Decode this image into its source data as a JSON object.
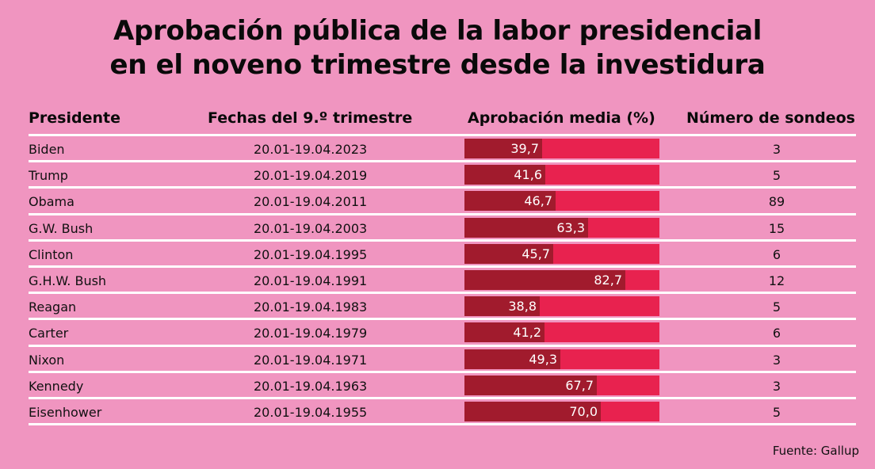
{
  "title_line1": "Aprobación pública de la labor presidencial",
  "title_line2": "en el noveno trimestre desde la investidura",
  "headers": {
    "president": "Presidente",
    "dates": "Fechas del 9.º trimestre",
    "approval": "Aprobación media (%)",
    "polls": "Número de sondeos"
  },
  "source": "Fuente: Gallup",
  "colors": {
    "background": "#f095c0",
    "bar_track": "#e8224f",
    "bar_fill": "#a11b2d",
    "rule": "#ffffff"
  },
  "chart_data": {
    "type": "table",
    "title": "Aprobación pública de la labor presidencial en el noveno trimestre desde la investidura",
    "columns": [
      "Presidente",
      "Fechas del 9.º trimestre",
      "Aprobación media (%)",
      "Número de sondeos"
    ],
    "bar_range": [
      0,
      100
    ],
    "rows": [
      {
        "president": "Biden",
        "dates": "20.01-19.04.2023",
        "approval": 39.7,
        "approval_label": "39,7",
        "polls": "3"
      },
      {
        "president": "Trump",
        "dates": "20.01-19.04.2019",
        "approval": 41.6,
        "approval_label": "41,6",
        "polls": "5"
      },
      {
        "president": "Obama",
        "dates": "20.01-19.04.2011",
        "approval": 46.7,
        "approval_label": "46,7",
        "polls": "89"
      },
      {
        "president": "G.W. Bush",
        "dates": "20.01-19.04.2003",
        "approval": 63.3,
        "approval_label": "63,3",
        "polls": "15"
      },
      {
        "president": "Clinton",
        "dates": "20.01-19.04.1995",
        "approval": 45.7,
        "approval_label": "45,7",
        "polls": "6"
      },
      {
        "president": "G.H.W. Bush",
        "dates": "20.01-19.04.1991",
        "approval": 82.7,
        "approval_label": "82,7",
        "polls": "12"
      },
      {
        "president": "Reagan",
        "dates": "20.01-19.04.1983",
        "approval": 38.8,
        "approval_label": "38,8",
        "polls": "5"
      },
      {
        "president": "Carter",
        "dates": "20.01-19.04.1979",
        "approval": 41.2,
        "approval_label": "41,2",
        "polls": "6"
      },
      {
        "president": "Nixon",
        "dates": "20.01-19.04.1971",
        "approval": 49.3,
        "approval_label": "49,3",
        "polls": "3"
      },
      {
        "president": "Kennedy",
        "dates": "20.01-19.04.1963",
        "approval": 67.7,
        "approval_label": "67,7",
        "polls": "3"
      },
      {
        "president": "Eisenhower",
        "dates": "20.01-19.04.1955",
        "approval": 70.0,
        "approval_label": "70,0",
        "polls": "5"
      }
    ]
  }
}
